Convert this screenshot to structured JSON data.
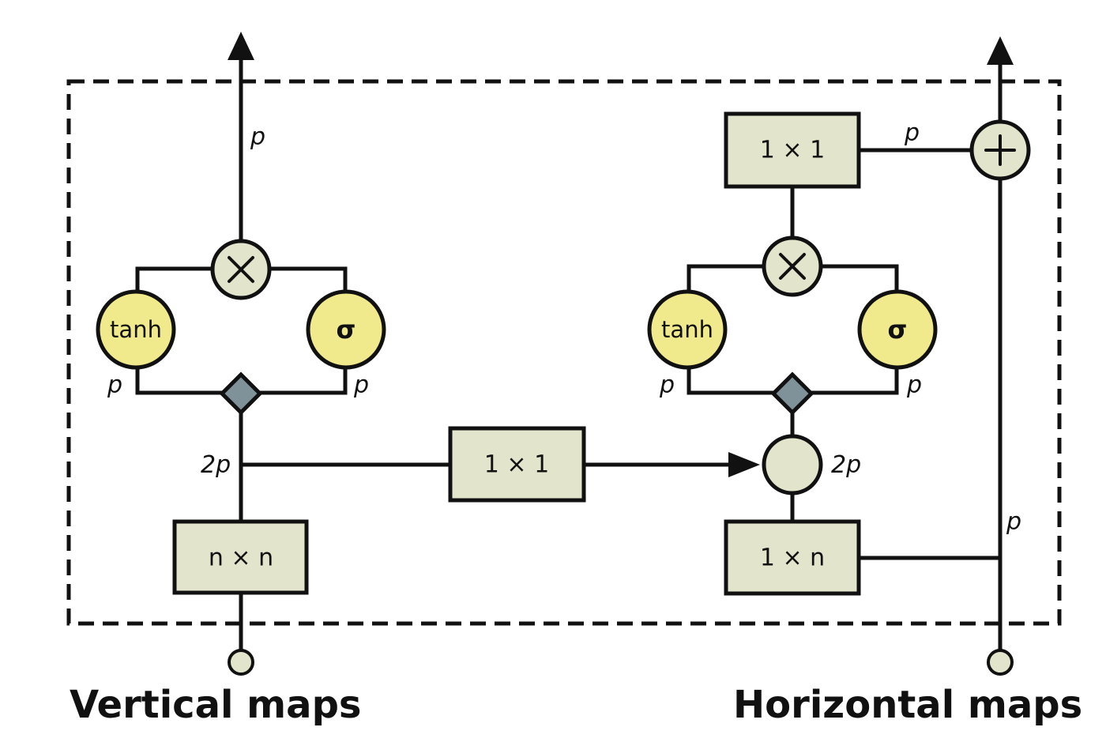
{
  "vertical_stack": {
    "title": "Vertical maps",
    "conv": "n × n",
    "tanh": "tanh",
    "sigma": "σ",
    "dim_out": "p",
    "dim_tanh": "p",
    "dim_sigma": "p",
    "dim_split": "2p"
  },
  "link": {
    "conv": "1 × 1"
  },
  "horizontal_stack": {
    "title": "Horizontal maps",
    "conv_in": "1 × n",
    "conv_out": "1 × 1",
    "tanh": "tanh",
    "sigma": "σ",
    "dim_tanh": "p",
    "dim_sigma": "p",
    "dim_sum": "2p",
    "dim_out": "p",
    "dim_residual": "p"
  },
  "colors": {
    "box_fill": "#e3e4cc",
    "activation_fill": "#f1ea8c",
    "gate_fill": "#7f929a",
    "line": "#111111"
  }
}
